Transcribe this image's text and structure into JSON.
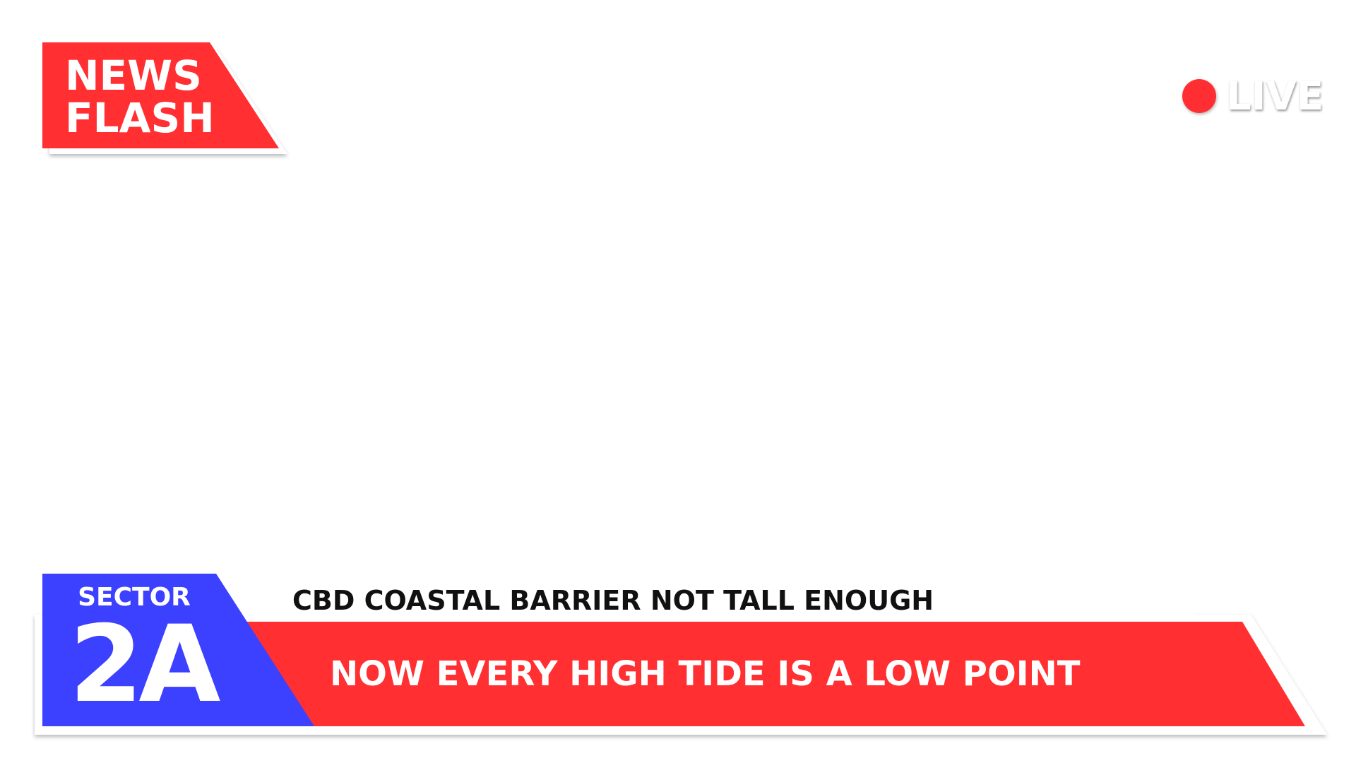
{
  "badge": {
    "line1": "NEWS",
    "line2": "FLASH"
  },
  "live": {
    "label": "LIVE"
  },
  "sector": {
    "label": "SECTOR",
    "number": "2A"
  },
  "ticker": {
    "headline": "CBD COASTAL BARRIER NOT TALL ENOUGH",
    "subheadline": "NOW EVERY HIGH TIDE IS A LOW POINT"
  },
  "colors": {
    "accent_red": "#ff2f32",
    "sector_blue": "#3c40ff",
    "background": "#ffffff"
  }
}
